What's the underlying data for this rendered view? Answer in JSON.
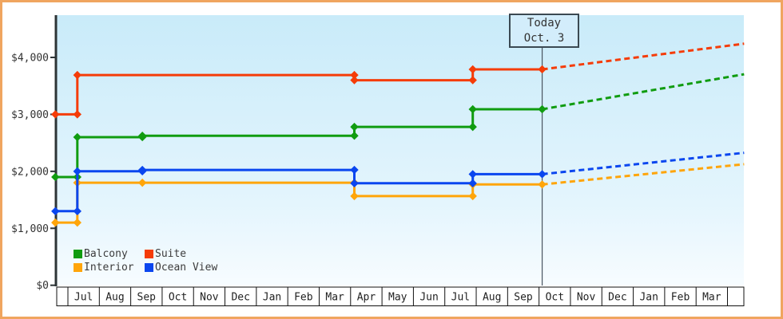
{
  "chart_data": {
    "type": "line",
    "subtype": "step-price-history-with-forecast",
    "title": "",
    "xlabel": "",
    "ylabel": "",
    "grid": false,
    "legend_position": "inside-bottom-left",
    "ylim": [
      0,
      4740
    ],
    "y_ticks": [
      {
        "value": 0,
        "label": "$0"
      },
      {
        "value": 1000,
        "label": "$1,000"
      },
      {
        "value": 2000,
        "label": "$2,000"
      },
      {
        "value": 3000,
        "label": "$3,000"
      },
      {
        "value": 4000,
        "label": "$4,000"
      }
    ],
    "x_months": [
      "Jul",
      "Aug",
      "Sep",
      "Oct",
      "Nov",
      "Dec",
      "Jan",
      "Feb",
      "Mar",
      "Apr",
      "May",
      "Jun",
      "Jul",
      "Aug",
      "Sep",
      "Oct",
      "Nov",
      "Dec",
      "Jan",
      "Feb",
      "Mar"
    ],
    "today": {
      "line1": "Today",
      "line2": "Oct. 3",
      "x_month": 15.1
    },
    "x_end": 21.53,
    "series": [
      {
        "name": "Balcony",
        "color": "#109c10",
        "points": [
          [
            -0.4,
            1900
          ],
          [
            0.3,
            1900
          ],
          [
            0.3,
            2600
          ],
          [
            2.37,
            2600
          ],
          [
            2.37,
            2625
          ],
          [
            9.12,
            2625
          ],
          [
            9.12,
            2780
          ],
          [
            12.89,
            2780
          ],
          [
            12.89,
            3090
          ],
          [
            15.1,
            3090
          ]
        ],
        "forecast": [
          [
            15.1,
            3090
          ],
          [
            21.53,
            3705
          ]
        ]
      },
      {
        "name": "Suite",
        "color": "#f53c08",
        "points": [
          [
            -0.4,
            3000
          ],
          [
            0.3,
            3000
          ],
          [
            0.3,
            3690
          ],
          [
            9.12,
            3690
          ],
          [
            9.12,
            3600
          ],
          [
            12.89,
            3600
          ],
          [
            12.89,
            3790
          ],
          [
            15.1,
            3790
          ]
        ],
        "forecast": [
          [
            15.1,
            3790
          ],
          [
            21.53,
            4240
          ]
        ]
      },
      {
        "name": "Interior",
        "color": "#ffa50a",
        "points": [
          [
            -0.4,
            1100
          ],
          [
            0.3,
            1100
          ],
          [
            0.3,
            1800
          ],
          [
            2.37,
            1800
          ],
          [
            9.12,
            1800
          ],
          [
            9.12,
            1565
          ],
          [
            12.89,
            1565
          ],
          [
            12.89,
            1770
          ],
          [
            15.1,
            1770
          ]
        ],
        "forecast": [
          [
            15.1,
            1770
          ],
          [
            21.53,
            2125
          ]
        ]
      },
      {
        "name": "Ocean View",
        "color": "#0a46ef",
        "points": [
          [
            -0.4,
            1300
          ],
          [
            0.3,
            1300
          ],
          [
            0.3,
            2000
          ],
          [
            2.37,
            2000
          ],
          [
            2.37,
            2025
          ],
          [
            9.12,
            2025
          ],
          [
            9.12,
            1790
          ],
          [
            12.89,
            1790
          ],
          [
            12.89,
            1950
          ],
          [
            15.1,
            1950
          ]
        ],
        "forecast": [
          [
            15.1,
            1950
          ],
          [
            21.53,
            2325
          ]
        ]
      }
    ],
    "legend": [
      {
        "label": "Balcony",
        "series": 0
      },
      {
        "label": "Suite",
        "series": 1
      },
      {
        "label": "Interior",
        "series": 2
      },
      {
        "label": "Ocean View",
        "series": 3
      }
    ]
  },
  "colors": {
    "frame_border": "#f0a55f",
    "plot_bg_top": "#c9ebf9",
    "plot_bg_mid": "#e4f5fd",
    "plot_bg_bottom": "#f7fcff",
    "axis": "#2d3436",
    "tick_text": "#333333",
    "month_text": "#222222",
    "month_border": "#111111",
    "today_line": "#4a5560",
    "today_box_border": "#3b4952",
    "today_box_fill": "#d3edfb",
    "legend_text": "#3c3c3c"
  }
}
